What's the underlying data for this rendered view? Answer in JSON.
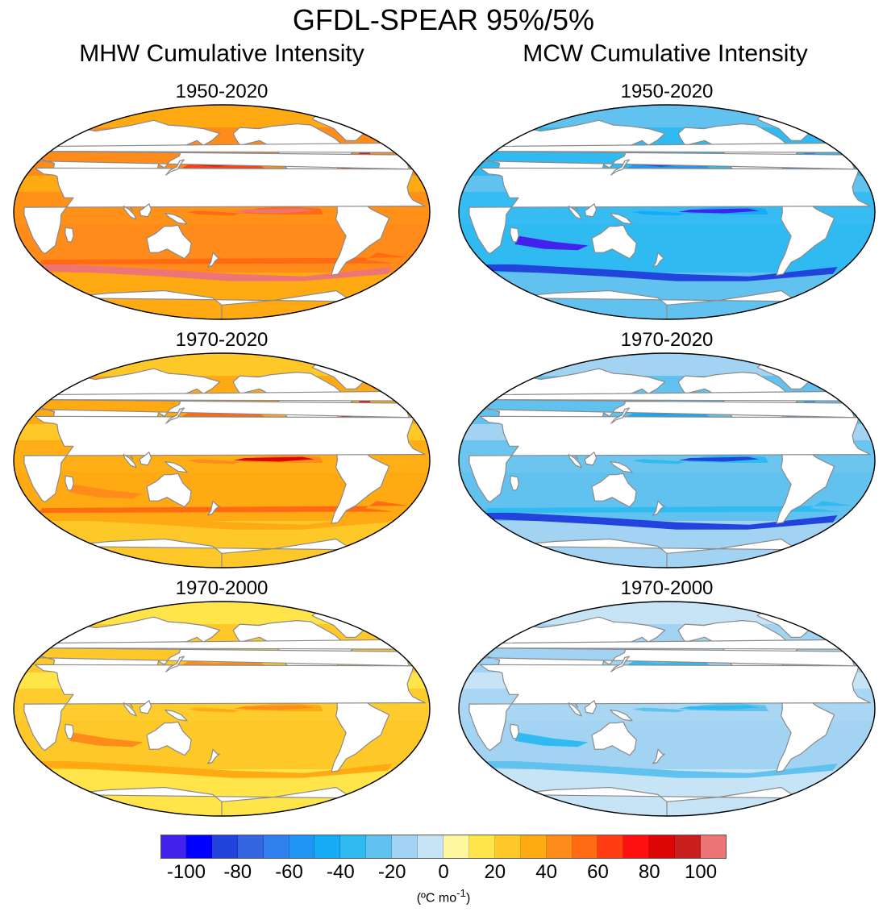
{
  "title": "GFDL-SPEAR 95%/5%",
  "columns": [
    {
      "key": "mhw",
      "title": "MHW Cumulative Intensity"
    },
    {
      "key": "mcw",
      "title": "MCW Cumulative Intensity"
    }
  ],
  "panels": [
    {
      "column": "mhw",
      "period": "1950-2020",
      "level": 3
    },
    {
      "column": "mhw",
      "period": "1970-2020",
      "level": 2
    },
    {
      "column": "mhw",
      "period": "1970-2000",
      "level": 1
    },
    {
      "column": "mcw",
      "period": "1950-2020",
      "level": 3
    },
    {
      "column": "mcw",
      "period": "1970-2020",
      "level": 2
    },
    {
      "column": "mcw",
      "period": "1970-2000",
      "level": 1
    }
  ],
  "colorbar": {
    "colors": [
      "#4422ee",
      "#0000ff",
      "#2244dd",
      "#3366e0",
      "#2f80ee",
      "#1f95f5",
      "#16acf5",
      "#2fbaf2",
      "#62c2ef",
      "#a3d3f2",
      "#c6e4f6",
      "#fff7a0",
      "#ffe44a",
      "#ffc829",
      "#ffaa12",
      "#ff8c1a",
      "#ff6a12",
      "#ff3c12",
      "#ff1010",
      "#dc0606",
      "#c81e1e",
      "#ee7575"
    ],
    "tick_labels": [
      "-100",
      "-80",
      "-60",
      "-40",
      "-20",
      "0",
      "20",
      "40",
      "60",
      "80",
      "100"
    ],
    "tick_values": [
      -100,
      -80,
      -60,
      -40,
      -20,
      0,
      20,
      40,
      60,
      80,
      100
    ],
    "min": -110,
    "max": 110,
    "units_text": "(ºC mo",
    "units_superscript": "-1",
    "units_close": ")"
  },
  "palettes": {
    "mhw": {
      "1": [
        "#ffe44a",
        "#ffc829",
        "#ffaa12",
        "#ff8c1a"
      ],
      "2": [
        "#ffc829",
        "#ffaa12",
        "#ff8c1a",
        "#ff6a12",
        "#dc0606"
      ],
      "3": [
        "#ffaa12",
        "#ff8c1a",
        "#ff6a12",
        "#ff3c12",
        "#c81e1e",
        "#ee7575"
      ]
    },
    "mcw": {
      "1": [
        "#c6e4f6",
        "#a3d3f2",
        "#62c2ef",
        "#2fbaf2"
      ],
      "2": [
        "#a3d3f2",
        "#62c2ef",
        "#2fbaf2",
        "#16acf5",
        "#1f95f5",
        "#2244dd"
      ],
      "3": [
        "#62c2ef",
        "#2fbaf2",
        "#16acf5",
        "#1f95f5",
        "#2f80ee",
        "#2244dd",
        "#4422ee"
      ]
    }
  }
}
